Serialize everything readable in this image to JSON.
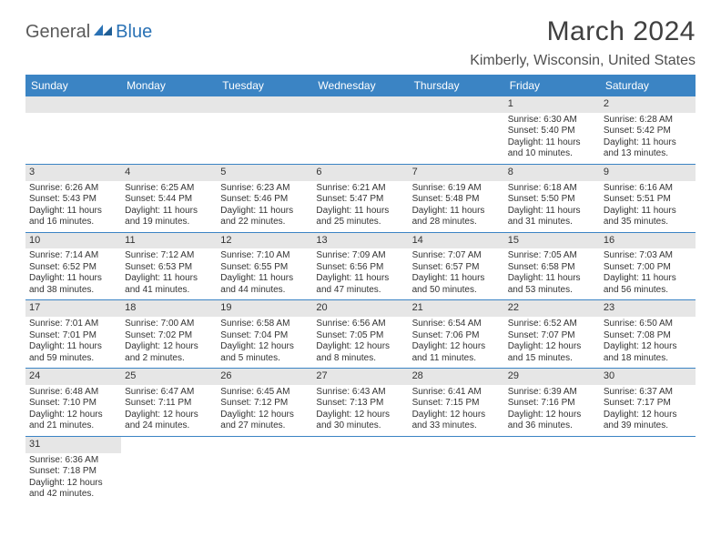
{
  "logo": {
    "text1": "General",
    "text2": "Blue"
  },
  "title": "March 2024",
  "location": "Kimberly, Wisconsin, United States",
  "day_headers": [
    "Sunday",
    "Monday",
    "Tuesday",
    "Wednesday",
    "Thursday",
    "Friday",
    "Saturday"
  ],
  "colors": {
    "header_bg": "#3b84c4",
    "header_text": "#ffffff",
    "daynum_bg": "#e6e6e6",
    "row_border": "#3b84c4",
    "logo_gray": "#5a5a5a",
    "logo_blue": "#2a72b5"
  },
  "weeks": [
    [
      {
        "num": "",
        "lines": []
      },
      {
        "num": "",
        "lines": []
      },
      {
        "num": "",
        "lines": []
      },
      {
        "num": "",
        "lines": []
      },
      {
        "num": "",
        "lines": []
      },
      {
        "num": "1",
        "lines": [
          "Sunrise: 6:30 AM",
          "Sunset: 5:40 PM",
          "Daylight: 11 hours",
          "and 10 minutes."
        ]
      },
      {
        "num": "2",
        "lines": [
          "Sunrise: 6:28 AM",
          "Sunset: 5:42 PM",
          "Daylight: 11 hours",
          "and 13 minutes."
        ]
      }
    ],
    [
      {
        "num": "3",
        "lines": [
          "Sunrise: 6:26 AM",
          "Sunset: 5:43 PM",
          "Daylight: 11 hours",
          "and 16 minutes."
        ]
      },
      {
        "num": "4",
        "lines": [
          "Sunrise: 6:25 AM",
          "Sunset: 5:44 PM",
          "Daylight: 11 hours",
          "and 19 minutes."
        ]
      },
      {
        "num": "5",
        "lines": [
          "Sunrise: 6:23 AM",
          "Sunset: 5:46 PM",
          "Daylight: 11 hours",
          "and 22 minutes."
        ]
      },
      {
        "num": "6",
        "lines": [
          "Sunrise: 6:21 AM",
          "Sunset: 5:47 PM",
          "Daylight: 11 hours",
          "and 25 minutes."
        ]
      },
      {
        "num": "7",
        "lines": [
          "Sunrise: 6:19 AM",
          "Sunset: 5:48 PM",
          "Daylight: 11 hours",
          "and 28 minutes."
        ]
      },
      {
        "num": "8",
        "lines": [
          "Sunrise: 6:18 AM",
          "Sunset: 5:50 PM",
          "Daylight: 11 hours",
          "and 31 minutes."
        ]
      },
      {
        "num": "9",
        "lines": [
          "Sunrise: 6:16 AM",
          "Sunset: 5:51 PM",
          "Daylight: 11 hours",
          "and 35 minutes."
        ]
      }
    ],
    [
      {
        "num": "10",
        "lines": [
          "Sunrise: 7:14 AM",
          "Sunset: 6:52 PM",
          "Daylight: 11 hours",
          "and 38 minutes."
        ]
      },
      {
        "num": "11",
        "lines": [
          "Sunrise: 7:12 AM",
          "Sunset: 6:53 PM",
          "Daylight: 11 hours",
          "and 41 minutes."
        ]
      },
      {
        "num": "12",
        "lines": [
          "Sunrise: 7:10 AM",
          "Sunset: 6:55 PM",
          "Daylight: 11 hours",
          "and 44 minutes."
        ]
      },
      {
        "num": "13",
        "lines": [
          "Sunrise: 7:09 AM",
          "Sunset: 6:56 PM",
          "Daylight: 11 hours",
          "and 47 minutes."
        ]
      },
      {
        "num": "14",
        "lines": [
          "Sunrise: 7:07 AM",
          "Sunset: 6:57 PM",
          "Daylight: 11 hours",
          "and 50 minutes."
        ]
      },
      {
        "num": "15",
        "lines": [
          "Sunrise: 7:05 AM",
          "Sunset: 6:58 PM",
          "Daylight: 11 hours",
          "and 53 minutes."
        ]
      },
      {
        "num": "16",
        "lines": [
          "Sunrise: 7:03 AM",
          "Sunset: 7:00 PM",
          "Daylight: 11 hours",
          "and 56 minutes."
        ]
      }
    ],
    [
      {
        "num": "17",
        "lines": [
          "Sunrise: 7:01 AM",
          "Sunset: 7:01 PM",
          "Daylight: 11 hours",
          "and 59 minutes."
        ]
      },
      {
        "num": "18",
        "lines": [
          "Sunrise: 7:00 AM",
          "Sunset: 7:02 PM",
          "Daylight: 12 hours",
          "and 2 minutes."
        ]
      },
      {
        "num": "19",
        "lines": [
          "Sunrise: 6:58 AM",
          "Sunset: 7:04 PM",
          "Daylight: 12 hours",
          "and 5 minutes."
        ]
      },
      {
        "num": "20",
        "lines": [
          "Sunrise: 6:56 AM",
          "Sunset: 7:05 PM",
          "Daylight: 12 hours",
          "and 8 minutes."
        ]
      },
      {
        "num": "21",
        "lines": [
          "Sunrise: 6:54 AM",
          "Sunset: 7:06 PM",
          "Daylight: 12 hours",
          "and 11 minutes."
        ]
      },
      {
        "num": "22",
        "lines": [
          "Sunrise: 6:52 AM",
          "Sunset: 7:07 PM",
          "Daylight: 12 hours",
          "and 15 minutes."
        ]
      },
      {
        "num": "23",
        "lines": [
          "Sunrise: 6:50 AM",
          "Sunset: 7:08 PM",
          "Daylight: 12 hours",
          "and 18 minutes."
        ]
      }
    ],
    [
      {
        "num": "24",
        "lines": [
          "Sunrise: 6:48 AM",
          "Sunset: 7:10 PM",
          "Daylight: 12 hours",
          "and 21 minutes."
        ]
      },
      {
        "num": "25",
        "lines": [
          "Sunrise: 6:47 AM",
          "Sunset: 7:11 PM",
          "Daylight: 12 hours",
          "and 24 minutes."
        ]
      },
      {
        "num": "26",
        "lines": [
          "Sunrise: 6:45 AM",
          "Sunset: 7:12 PM",
          "Daylight: 12 hours",
          "and 27 minutes."
        ]
      },
      {
        "num": "27",
        "lines": [
          "Sunrise: 6:43 AM",
          "Sunset: 7:13 PM",
          "Daylight: 12 hours",
          "and 30 minutes."
        ]
      },
      {
        "num": "28",
        "lines": [
          "Sunrise: 6:41 AM",
          "Sunset: 7:15 PM",
          "Daylight: 12 hours",
          "and 33 minutes."
        ]
      },
      {
        "num": "29",
        "lines": [
          "Sunrise: 6:39 AM",
          "Sunset: 7:16 PM",
          "Daylight: 12 hours",
          "and 36 minutes."
        ]
      },
      {
        "num": "30",
        "lines": [
          "Sunrise: 6:37 AM",
          "Sunset: 7:17 PM",
          "Daylight: 12 hours",
          "and 39 minutes."
        ]
      }
    ],
    [
      {
        "num": "31",
        "lines": [
          "Sunrise: 6:36 AM",
          "Sunset: 7:18 PM",
          "Daylight: 12 hours",
          "and 42 minutes."
        ]
      },
      {
        "num": "",
        "lines": []
      },
      {
        "num": "",
        "lines": []
      },
      {
        "num": "",
        "lines": []
      },
      {
        "num": "",
        "lines": []
      },
      {
        "num": "",
        "lines": []
      },
      {
        "num": "",
        "lines": []
      }
    ]
  ]
}
